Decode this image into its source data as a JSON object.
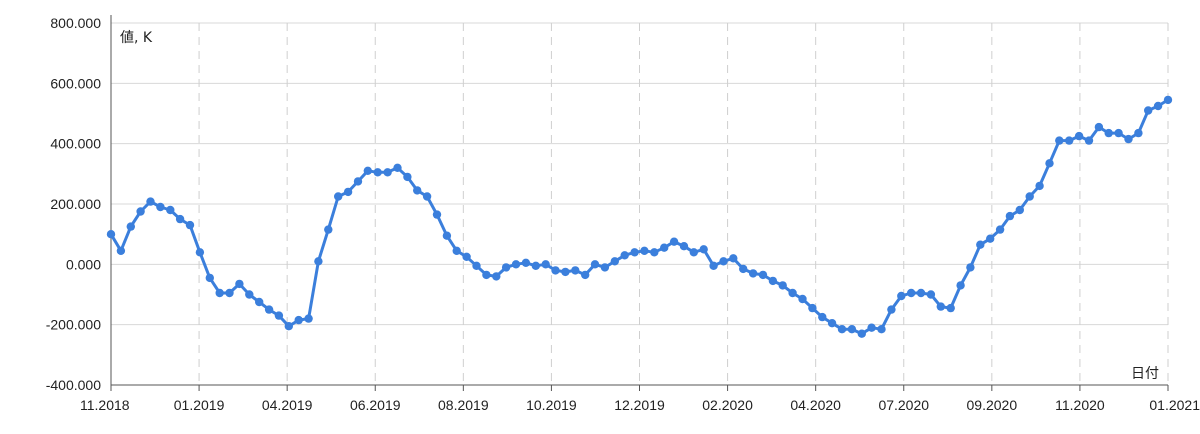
{
  "chart_data": {
    "type": "line",
    "ylabel": "値, K",
    "xlabel": "日付",
    "ylim": [
      -400000,
      800000
    ],
    "y_ticks": [
      {
        "value": 800000,
        "label": "800.000"
      },
      {
        "value": 600000,
        "label": "600.000"
      },
      {
        "value": 400000,
        "label": "400.000"
      },
      {
        "value": 200000,
        "label": "200.000"
      },
      {
        "value": 0,
        "label": "0.000"
      },
      {
        "value": -200000,
        "label": "-200.000"
      },
      {
        "value": -400000,
        "label": "-400.000"
      }
    ],
    "x_ticks": [
      "11.2018",
      "01.2019",
      "04.2019",
      "06.2019",
      "08.2019",
      "10.2019",
      "12.2019",
      "02.2020",
      "04.2020",
      "07.2020",
      "09.2020",
      "11.2020",
      "01.2021"
    ],
    "grid": true,
    "line_color": "#3b7fdc",
    "series": [
      {
        "values": [
          100000,
          45000,
          125000,
          175000,
          208000,
          190000,
          180000,
          150000,
          130000,
          40000,
          -45000,
          -95000,
          -95000,
          -65000,
          -100000,
          -125000,
          -150000,
          -170000,
          -205000,
          -185000,
          -180000,
          10000,
          115000,
          225000,
          240000,
          275000,
          310000,
          305000,
          305000,
          320000,
          290000,
          245000,
          225000,
          165000,
          95000,
          45000,
          25000,
          -5000,
          -35000,
          -40000,
          -10000,
          0,
          5000,
          -5000,
          0,
          -20000,
          -25000,
          -20000,
          -35000,
          0,
          -10000,
          10000,
          30000,
          40000,
          45000,
          40000,
          55000,
          75000,
          60000,
          40000,
          50000,
          -5000,
          10000,
          20000,
          -15000,
          -30000,
          -35000,
          -55000,
          -70000,
          -95000,
          -115000,
          -145000,
          -175000,
          -195000,
          -215000,
          -215000,
          -230000,
          -210000,
          -215000,
          -150000,
          -105000,
          -95000,
          -95000,
          -100000,
          -140000,
          -145000,
          -70000,
          -10000,
          65000,
          85000,
          115000,
          160000,
          180000,
          225000,
          260000,
          335000,
          410000,
          410000,
          425000,
          410000,
          455000,
          435000,
          435000,
          415000,
          435000,
          510000,
          525000,
          545000
        ]
      }
    ]
  }
}
